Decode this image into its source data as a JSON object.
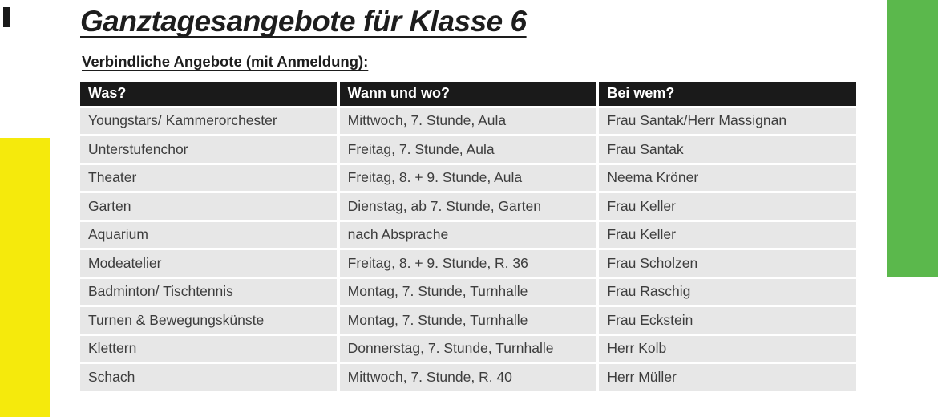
{
  "page": {
    "title": "Ganztagesangebote für Klasse 6",
    "subtitle": "Verbindliche Angebote (mit Anmeldung):"
  },
  "table": {
    "headers": [
      "Was?",
      "Wann und wo?",
      "Bei wem?"
    ],
    "rows": [
      [
        "Youngstars/ Kammerorchester",
        "Mittwoch, 7. Stunde, Aula",
        "Frau Santak/Herr Massignan"
      ],
      [
        "Unterstufenchor",
        "Freitag, 7. Stunde, Aula",
        "Frau Santak"
      ],
      [
        "Theater",
        "Freitag, 8. + 9. Stunde, Aula",
        "Neema Kröner"
      ],
      [
        "Garten",
        "Dienstag, ab 7. Stunde, Garten",
        "Frau Keller"
      ],
      [
        "Aquarium",
        "nach Absprache",
        "Frau Keller"
      ],
      [
        "Modeatelier",
        "Freitag, 8. + 9. Stunde, R. 36",
        "Frau Scholzen"
      ],
      [
        "Badminton/ Tischtennis",
        "Montag, 7. Stunde, Turnhalle",
        "Frau Raschig"
      ],
      [
        "Turnen & Bewegungskünste",
        "Montag, 7. Stunde, Turnhalle",
        "Frau Eckstein"
      ],
      [
        "Klettern",
        "Donnerstag, 7. Stunde, Turnhalle",
        "Herr Kolb"
      ],
      [
        "Schach",
        "Mittwoch, 7. Stunde, R. 40",
        "Herr Müller"
      ]
    ]
  },
  "decorations": {
    "yellow_bar_color": "#F5EA0C",
    "green_bar_color": "#5BB84C",
    "header_bg": "#1A1A1A",
    "row_bg": "#E7E7E7"
  }
}
